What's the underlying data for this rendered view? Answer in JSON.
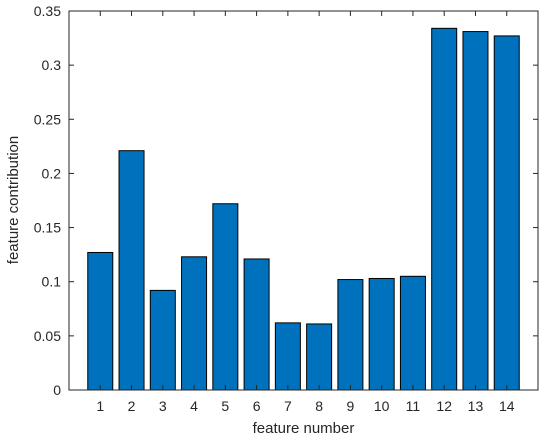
{
  "chart_data": {
    "type": "bar",
    "title": "",
    "xlabel": "feature number",
    "ylabel": "feature contribution",
    "categories": [
      "1",
      "2",
      "3",
      "4",
      "5",
      "6",
      "7",
      "8",
      "9",
      "10",
      "11",
      "12",
      "13",
      "14"
    ],
    "values": [
      0.127,
      0.221,
      0.092,
      0.123,
      0.172,
      0.121,
      0.062,
      0.061,
      0.102,
      0.103,
      0.105,
      0.334,
      0.331,
      0.327
    ],
    "ylim": [
      0,
      0.35
    ],
    "yticks": [
      0,
      0.05,
      0.1,
      0.15,
      0.2,
      0.25,
      0.3,
      0.35
    ],
    "ytick_labels": [
      "0",
      "0.05",
      "0.1",
      "0.15",
      "0.2",
      "0.25",
      "0.3",
      "0.35"
    ],
    "bar_color": "#0072BD",
    "grid": false,
    "legend": false
  }
}
